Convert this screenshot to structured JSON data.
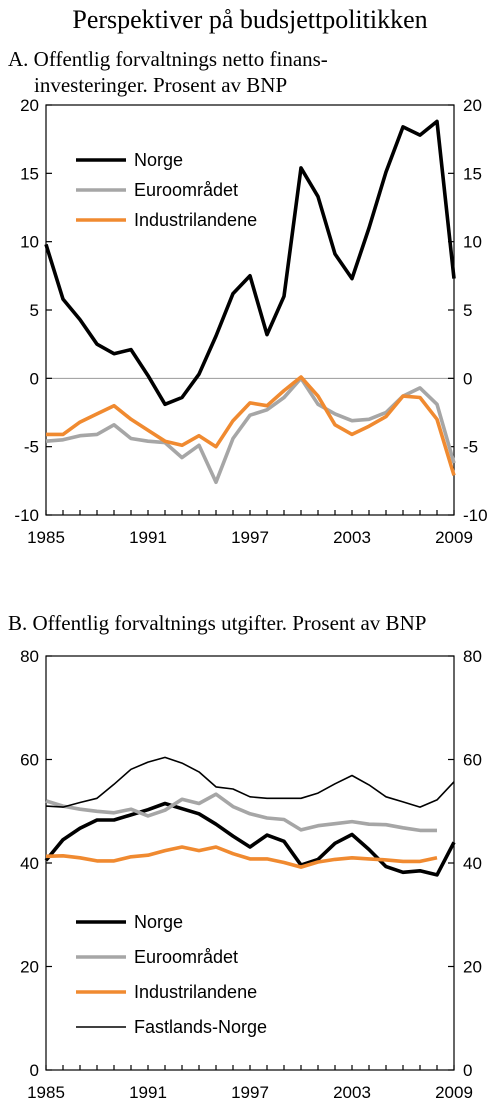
{
  "page_title": "Perspektiver på budsjettpolitikken",
  "chart_data": [
    {
      "type": "line",
      "title": "A.  Offentlig forvaltnings netto finans-",
      "title_line2": "investeringer. Prosent av BNP",
      "ylim": [
        -10,
        20
      ],
      "yticks": [
        -10,
        -5,
        0,
        5,
        10,
        15,
        20
      ],
      "xticks": [
        1985,
        1991,
        1997,
        2003,
        2009
      ],
      "xlim": [
        1985,
        2009
      ],
      "legend_position": "top-left",
      "grid": false,
      "series": [
        {
          "name": "Norge",
          "color": "#000000",
          "x": [
            1985,
            1986,
            1987,
            1988,
            1989,
            1990,
            1991,
            1992,
            1993,
            1994,
            1995,
            1996,
            1997,
            1998,
            1999,
            2000,
            2001,
            2002,
            2003,
            2004,
            2005,
            2006,
            2007,
            2008,
            2009
          ],
          "values": [
            9.8,
            5.8,
            4.3,
            2.5,
            1.8,
            2.1,
            0.2,
            -1.9,
            -1.4,
            0.3,
            3.1,
            6.2,
            7.5,
            3.2,
            6.0,
            15.4,
            13.3,
            9.1,
            7.3,
            11.0,
            15.1,
            18.4,
            17.8,
            18.8,
            7.3
          ]
        },
        {
          "name": "Euroområdet",
          "color": "#a6a6a6",
          "x": [
            1985,
            1986,
            1987,
            1988,
            1989,
            1990,
            1991,
            1992,
            1993,
            1994,
            1995,
            1996,
            1997,
            1998,
            1999,
            2000,
            2001,
            2002,
            2003,
            2004,
            2005,
            2006,
            2007,
            2008,
            2009
          ],
          "values": [
            -4.6,
            -4.5,
            -4.2,
            -4.1,
            -3.4,
            -4.4,
            -4.6,
            -4.7,
            -5.8,
            -4.9,
            -7.6,
            -4.4,
            -2.7,
            -2.3,
            -1.4,
            0.0,
            -1.9,
            -2.6,
            -3.1,
            -3.0,
            -2.5,
            -1.3,
            -0.7,
            -1.9,
            -6.2
          ]
        },
        {
          "name": "Industrilandene",
          "color": "#f08a30",
          "x": [
            1985,
            1986,
            1987,
            1988,
            1989,
            1990,
            1991,
            1992,
            1993,
            1994,
            1995,
            1996,
            1997,
            1998,
            1999,
            2000,
            2001,
            2002,
            2003,
            2004,
            2005,
            2006,
            2007,
            2008,
            2009
          ],
          "values": [
            -4.1,
            -4.1,
            -3.2,
            -2.6,
            -2.0,
            -3.0,
            -3.8,
            -4.6,
            -4.9,
            -4.2,
            -5.0,
            -3.1,
            -1.8,
            -2.0,
            -0.9,
            0.1,
            -1.3,
            -3.4,
            -4.1,
            -3.5,
            -2.8,
            -1.3,
            -1.4,
            -3.0,
            -7.1
          ]
        }
      ]
    },
    {
      "type": "line",
      "title": "B.  Offentlig forvaltnings utgifter. Prosent av BNP",
      "ylim": [
        0,
        80
      ],
      "yticks": [
        0,
        20,
        40,
        60,
        80
      ],
      "xticks": [
        1985,
        1991,
        1997,
        2003,
        2009
      ],
      "xlim": [
        1985,
        2009
      ],
      "legend_position": "bottom-left",
      "grid": false,
      "series": [
        {
          "name": "Norge",
          "color": "#000000",
          "x": [
            1985,
            1986,
            1987,
            1988,
            1989,
            1990,
            1991,
            1992,
            1993,
            1994,
            1995,
            1996,
            1997,
            1998,
            1999,
            2000,
            2001,
            2002,
            2003,
            2004,
            2005,
            2006,
            2007,
            2008,
            2009
          ],
          "values": [
            40.5,
            44.5,
            46.7,
            48.3,
            48.3,
            49.3,
            50.3,
            51.5,
            50.5,
            49.5,
            47.5,
            45.2,
            43.1,
            45.4,
            44.2,
            39.6,
            40.7,
            43.8,
            45.5,
            42.6,
            39.3,
            38.2,
            38.5,
            37.7,
            44.0
          ]
        },
        {
          "name": "Euroområdet",
          "color": "#a6a6a6",
          "x": [
            1985,
            1986,
            1987,
            1988,
            1989,
            1990,
            1991,
            1992,
            1993,
            1994,
            1995,
            1996,
            1997,
            1998,
            1999,
            2000,
            2001,
            2002,
            2003,
            2004,
            2005,
            2006,
            2007,
            2008
          ],
          "values": [
            52.0,
            51.0,
            50.4,
            50.0,
            49.7,
            50.4,
            49.1,
            50.2,
            52.3,
            51.5,
            53.3,
            50.9,
            49.5,
            48.7,
            48.4,
            46.4,
            47.2,
            47.6,
            48.0,
            47.5,
            47.4,
            46.8,
            46.3,
            46.3
          ]
        },
        {
          "name": "Industrilandene",
          "color": "#f08a30",
          "x": [
            1985,
            1986,
            1987,
            1988,
            1989,
            1990,
            1991,
            1992,
            1993,
            1994,
            1995,
            1996,
            1997,
            1998,
            1999,
            2000,
            2001,
            2002,
            2003,
            2004,
            2005,
            2006,
            2007,
            2008
          ],
          "values": [
            41.3,
            41.4,
            41.0,
            40.4,
            40.4,
            41.2,
            41.5,
            42.4,
            43.1,
            42.4,
            43.1,
            41.8,
            40.8,
            40.8,
            40.1,
            39.2,
            40.2,
            40.7,
            41.0,
            40.8,
            40.6,
            40.3,
            40.3,
            41.0
          ]
        },
        {
          "name": "Fastlands-Norge",
          "color": "#000000",
          "thin": true,
          "x": [
            1985,
            1986,
            1987,
            1988,
            1989,
            1990,
            1991,
            1992,
            1993,
            1994,
            1995,
            1996,
            1997,
            1998,
            1999,
            2000,
            2001,
            2002,
            2003,
            2004,
            2005,
            2006,
            2007,
            2008,
            2009
          ],
          "values": [
            51.0,
            50.8,
            51.7,
            52.5,
            55.2,
            58.1,
            59.5,
            60.4,
            59.3,
            57.6,
            54.7,
            54.3,
            52.8,
            52.5,
            52.5,
            52.5,
            53.5,
            55.3,
            56.9,
            55.1,
            52.8,
            51.8,
            50.8,
            52.2,
            55.7
          ]
        }
      ]
    }
  ]
}
